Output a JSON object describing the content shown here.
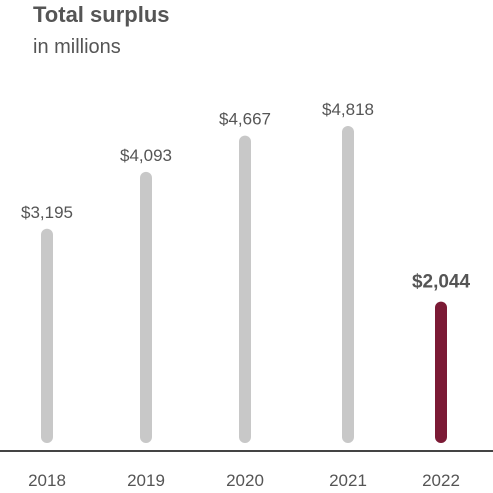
{
  "chart_data": {
    "type": "bar",
    "title": "Total surplus",
    "subtitle": "in millions",
    "xlabel": "",
    "ylabel": "",
    "categories": [
      "2018",
      "2019",
      "2020",
      "2021",
      "2022"
    ],
    "values": [
      3195,
      4093,
      4667,
      4818,
      2044
    ],
    "value_labels": [
      "$3,195",
      "$4,093",
      "$4,667",
      "$4,818",
      "$2,044"
    ],
    "highlight_category": "2022",
    "ylim": [
      0,
      5000
    ],
    "grid": false,
    "legend": "none",
    "colors": {
      "bar": "#c8c8c8",
      "highlight": "#7b1a35",
      "text": "#555555",
      "axis": "#444444"
    }
  }
}
